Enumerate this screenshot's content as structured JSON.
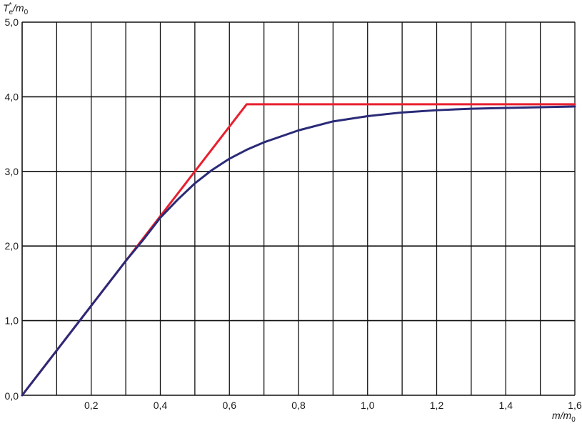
{
  "chart_data": {
    "type": "line",
    "xlabel": {
      "main": "m/m",
      "sub": "0"
    },
    "ylabel": {
      "main": "T",
      "sup": "*",
      "sub": "e",
      "rest": "/m",
      "sub2": "0"
    },
    "xlim": [
      0,
      1.6
    ],
    "ylim": [
      0,
      5.0
    ],
    "grid": true,
    "x_gridlines": [
      0.1,
      0.2,
      0.3,
      0.4,
      0.5,
      0.6,
      0.7,
      0.8,
      0.9,
      1.0,
      1.1,
      1.2,
      1.3,
      1.4,
      1.5,
      1.6
    ],
    "y_gridlines": [
      1.0,
      2.0,
      3.0,
      4.0,
      5.0
    ],
    "x_tick_labels": [
      {
        "value": 0.2,
        "label": "0,2"
      },
      {
        "value": 0.4,
        "label": "0,4"
      },
      {
        "value": 0.6,
        "label": "0,6"
      },
      {
        "value": 0.8,
        "label": "0,8"
      },
      {
        "value": 1.0,
        "label": "1,0"
      },
      {
        "value": 1.2,
        "label": "1,2"
      },
      {
        "value": 1.4,
        "label": "1,4"
      },
      {
        "value": 1.6,
        "label": "1,6"
      }
    ],
    "y_tick_labels": [
      {
        "value": 0.0,
        "label": "0,0"
      },
      {
        "value": 1.0,
        "label": "1,0"
      },
      {
        "value": 2.0,
        "label": "2,0"
      },
      {
        "value": 3.0,
        "label": "3,0"
      },
      {
        "value": 4.0,
        "label": "4,0"
      },
      {
        "value": 5.0,
        "label": "5,0"
      }
    ],
    "series": [
      {
        "color": "#e8202e",
        "x": [
          0,
          0.65,
          1.6
        ],
        "y": [
          0,
          3.9,
          3.9
        ]
      },
      {
        "color": "#2a2a78",
        "x": [
          0,
          0.1,
          0.2,
          0.3,
          0.35,
          0.4,
          0.45,
          0.5,
          0.55,
          0.6,
          0.65,
          0.7,
          0.8,
          0.9,
          1.0,
          1.1,
          1.2,
          1.3,
          1.4,
          1.5,
          1.6
        ],
        "y": [
          0,
          0.6,
          1.2,
          1.8,
          2.08,
          2.38,
          2.62,
          2.84,
          3.02,
          3.17,
          3.29,
          3.39,
          3.55,
          3.67,
          3.74,
          3.79,
          3.82,
          3.84,
          3.85,
          3.86,
          3.87
        ]
      }
    ]
  }
}
